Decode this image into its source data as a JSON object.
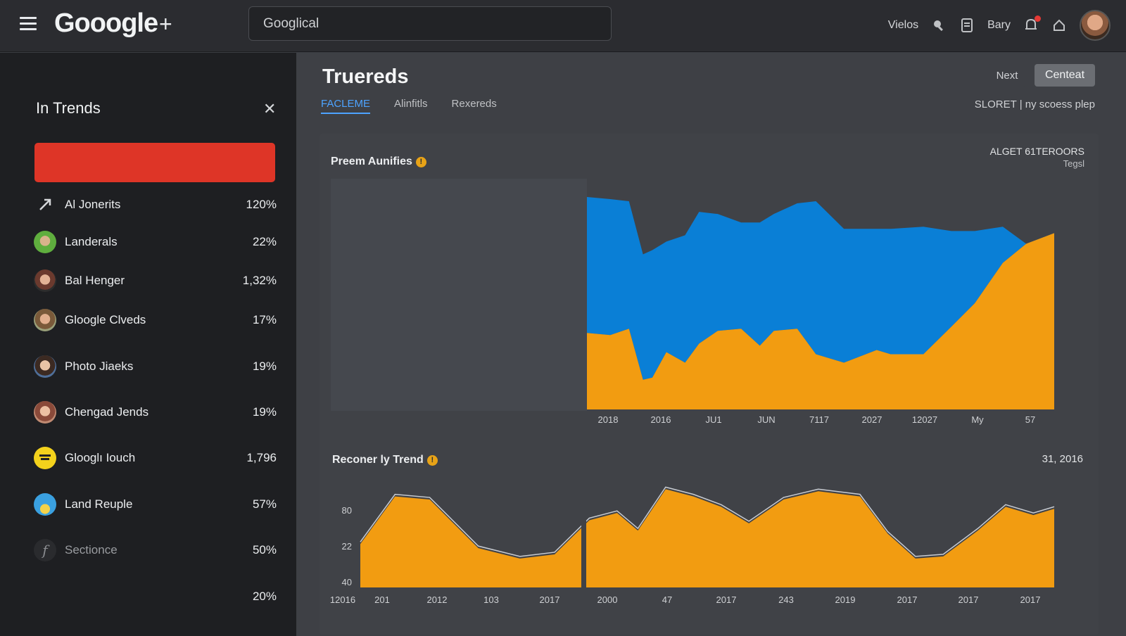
{
  "header": {
    "logo": "Gooogle",
    "search_value": "Googlical",
    "links": [
      "Vielos",
      "Bary"
    ],
    "icons": [
      "menu-icon",
      "plus-icon",
      "search-tool-icon",
      "document-icon",
      "bell-icon",
      "home-icon"
    ]
  },
  "sidebar": {
    "title": "In Trends",
    "bar_color": "#de3527",
    "items": [
      {
        "label": "Al Jonerits",
        "value": "120%",
        "icon": "arrow-icon"
      },
      {
        "label": "Landerals",
        "value": "22%",
        "icon": "avatar"
      },
      {
        "label": "Bal Henger",
        "value": "1,32%",
        "icon": "avatar"
      },
      {
        "label": "Gloogle Clveds",
        "value": "17%",
        "icon": "avatar"
      },
      {
        "label": "Photo Jiaeks",
        "value": "19%",
        "icon": "avatar"
      },
      {
        "label": "Chengad Jends",
        "value": "19%",
        "icon": "avatar"
      },
      {
        "label": "Glooglı Iouch",
        "value": "1,796",
        "icon": "app-icon"
      },
      {
        "label": "Land Reuple",
        "value": "57%",
        "icon": "app-icon"
      },
      {
        "label": "Sectionce",
        "value": "50%",
        "icon": "f-icon"
      },
      {
        "label": "",
        "value": "20%",
        "icon": ""
      }
    ]
  },
  "main": {
    "title": "Truereds",
    "next_label": "Next",
    "content_label": "Centeat",
    "tabs": [
      {
        "label": "FACLEME",
        "active": true
      },
      {
        "label": "Alinfitls",
        "active": false
      },
      {
        "label": "Rexereds",
        "active": false
      }
    ],
    "subnote": "SLORET | ny scoess plep"
  },
  "chart_data": [
    {
      "type": "area",
      "title": "Preem Aunifies",
      "legend": [
        "ALGET 61TEROORS",
        "Tegsl"
      ],
      "legend_position": "top-right",
      "x_ticks": [
        "2018",
        "2016",
        "JU1",
        "JUN",
        "7117",
        "2027",
        "12027",
        "My",
        "57"
      ],
      "colors": {
        "top": "#0a7fd6",
        "bottom": "#f29c11"
      },
      "x": [
        0,
        0.05,
        0.09,
        0.12,
        0.14,
        0.17,
        0.21,
        0.24,
        0.28,
        0.33,
        0.37,
        0.4,
        0.45,
        0.49,
        0.55,
        0.62,
        0.65,
        0.72,
        0.78,
        0.83,
        0.89,
        0.94,
        1.0
      ],
      "series": [
        {
          "values": [
            0.36,
            0.35,
            0.38,
            0.14,
            0.15,
            0.27,
            0.22,
            0.31,
            0.37,
            0.38,
            0.3,
            0.37,
            0.38,
            0.26,
            0.22,
            0.28,
            0.26,
            0.26,
            0.39,
            0.5,
            0.69,
            0.78,
            0.83
          ]
        },
        {
          "values": [
            1.0,
            0.99,
            0.98,
            0.73,
            0.75,
            0.79,
            0.82,
            0.93,
            0.92,
            0.88,
            0.88,
            0.92,
            0.97,
            0.98,
            0.85,
            0.85,
            0.85,
            0.86,
            0.84,
            0.84,
            0.86,
            0.78,
            0.78
          ]
        }
      ]
    },
    {
      "type": "area",
      "title": "Reconer ly Trend",
      "date_label": "31, 2016",
      "y_ticks": [
        "80",
        "22",
        "40"
      ],
      "x_ticks": [
        "12016",
        "201",
        "2012",
        "103",
        "2017",
        "2000",
        "47",
        "2017",
        "243",
        "2019",
        "2017",
        "2017",
        "2017"
      ],
      "colors": {
        "fill": "#f29c11",
        "line": "#c8ccd2"
      },
      "x": [
        0,
        0.05,
        0.1,
        0.17,
        0.23,
        0.28,
        0.33,
        0.37,
        0.4,
        0.44,
        0.48,
        0.52,
        0.56,
        0.61,
        0.66,
        0.72,
        0.76,
        0.8,
        0.84,
        0.89,
        0.93,
        0.97,
        1.0
      ],
      "series": [
        {
          "values": [
            0.42,
            0.88,
            0.85,
            0.38,
            0.28,
            0.32,
            0.65,
            0.72,
            0.55,
            0.95,
            0.88,
            0.78,
            0.62,
            0.85,
            0.93,
            0.88,
            0.52,
            0.28,
            0.3,
            0.55,
            0.78,
            0.7,
            0.76
          ]
        }
      ]
    }
  ]
}
